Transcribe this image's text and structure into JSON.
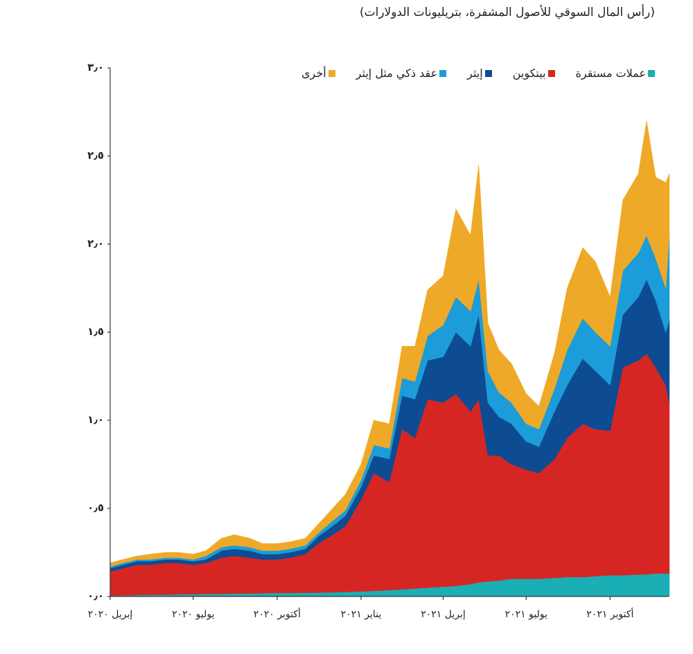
{
  "chart_data": {
    "type": "area",
    "stacked": true,
    "title": "(رأس المال السوقي للأصول المشفرة، بتريليونات الدولارات)",
    "xlabel": "",
    "ylabel": "",
    "ylim": [
      0,
      3.0
    ],
    "grid": false,
    "legend_position": "top",
    "y_ticks": [
      0,
      0.5,
      1.0,
      1.5,
      2.0,
      2.5,
      3.0
    ],
    "y_tick_labels": [
      "٠٫٠",
      "٠٫٥",
      "١٫٠",
      "١٫٥",
      "٢٫٠",
      "٢٫٥",
      "٣٫٠"
    ],
    "x_ticks": [
      "2020-04-01",
      "2020-07-01",
      "2020-10-01",
      "2021-01-01",
      "2021-04-01",
      "2021-07-01",
      "2021-10-01"
    ],
    "x_tick_labels": [
      "إبريل ٢٠٢٠",
      "يوليو ٢٠٢٠",
      "أكتوبر ٢٠٢٠",
      "يناير ٢٠٢١",
      "إبريل ٢٠٢١",
      "يوليو ٢٠٢١",
      "أكتوبر ٢٠٢١"
    ],
    "x": [
      "2020-04-01",
      "2020-04-15",
      "2020-05-01",
      "2020-05-15",
      "2020-06-01",
      "2020-06-15",
      "2020-07-01",
      "2020-07-15",
      "2020-08-01",
      "2020-08-15",
      "2020-09-01",
      "2020-09-15",
      "2020-10-01",
      "2020-10-15",
      "2020-11-01",
      "2020-11-15",
      "2020-12-01",
      "2020-12-15",
      "2021-01-01",
      "2021-01-15",
      "2021-02-01",
      "2021-02-15",
      "2021-03-01",
      "2021-03-15",
      "2021-04-01",
      "2021-04-15",
      "2021-05-01",
      "2021-05-10",
      "2021-05-20",
      "2021-06-01",
      "2021-06-15",
      "2021-07-01",
      "2021-07-15",
      "2021-08-01",
      "2021-08-15",
      "2021-09-01",
      "2021-09-15",
      "2021-10-01",
      "2021-10-15",
      "2021-11-01",
      "2021-11-10",
      "2021-11-20",
      "2021-12-01",
      "2021-12-05"
    ],
    "series": [
      {
        "name": "عملات مستقرة",
        "color": "#1aafb4",
        "values": [
          0.005,
          0.006,
          0.008,
          0.01,
          0.01,
          0.012,
          0.013,
          0.014,
          0.015,
          0.016,
          0.017,
          0.018,
          0.02,
          0.02,
          0.021,
          0.022,
          0.024,
          0.026,
          0.028,
          0.032,
          0.036,
          0.04,
          0.045,
          0.05,
          0.055,
          0.06,
          0.07,
          0.08,
          0.085,
          0.09,
          0.1,
          0.1,
          0.1,
          0.105,
          0.11,
          0.11,
          0.115,
          0.12,
          0.12,
          0.125,
          0.125,
          0.13,
          0.13,
          0.13
        ]
      },
      {
        "name": "بيتكوين",
        "color": "#d62624",
        "values": [
          0.135,
          0.154,
          0.172,
          0.17,
          0.18,
          0.178,
          0.167,
          0.176,
          0.205,
          0.214,
          0.203,
          0.192,
          0.19,
          0.2,
          0.219,
          0.278,
          0.326,
          0.374,
          0.522,
          0.668,
          0.614,
          0.91,
          0.855,
          1.07,
          1.045,
          1.09,
          0.98,
          1.04,
          0.715,
          0.71,
          0.65,
          0.62,
          0.6,
          0.675,
          0.79,
          0.87,
          0.835,
          0.82,
          1.18,
          1.215,
          1.255,
          1.17,
          1.07,
          0.97
        ]
      },
      {
        "name": "إيثر",
        "color": "#0d4c92",
        "values": [
          0.02,
          0.02,
          0.02,
          0.02,
          0.02,
          0.02,
          0.02,
          0.02,
          0.04,
          0.04,
          0.04,
          0.03,
          0.03,
          0.03,
          0.03,
          0.04,
          0.05,
          0.06,
          0.07,
          0.1,
          0.13,
          0.19,
          0.22,
          0.22,
          0.26,
          0.35,
          0.37,
          0.48,
          0.3,
          0.22,
          0.23,
          0.16,
          0.15,
          0.27,
          0.3,
          0.37,
          0.33,
          0.26,
          0.3,
          0.36,
          0.42,
          0.38,
          0.3,
          0.47
        ]
      },
      {
        "name": "عقد ذكي مثل إيثر",
        "color": "#1c9cd8",
        "values": [
          0.01,
          0.01,
          0.01,
          0.01,
          0.01,
          0.01,
          0.01,
          0.02,
          0.02,
          0.02,
          0.02,
          0.02,
          0.02,
          0.02,
          0.02,
          0.02,
          0.03,
          0.03,
          0.04,
          0.06,
          0.06,
          0.1,
          0.1,
          0.14,
          0.18,
          0.2,
          0.2,
          0.2,
          0.18,
          0.14,
          0.12,
          0.1,
          0.1,
          0.13,
          0.2,
          0.23,
          0.22,
          0.22,
          0.25,
          0.25,
          0.25,
          0.24,
          0.25,
          0.48
        ]
      },
      {
        "name": "أخرى",
        "color": "#efa928",
        "values": [
          0.02,
          0.02,
          0.02,
          0.03,
          0.03,
          0.03,
          0.03,
          0.03,
          0.05,
          0.06,
          0.05,
          0.04,
          0.04,
          0.04,
          0.04,
          0.05,
          0.07,
          0.09,
          0.09,
          0.14,
          0.14,
          0.18,
          0.2,
          0.26,
          0.28,
          0.5,
          0.43,
          0.65,
          0.27,
          0.24,
          0.22,
          0.17,
          0.13,
          0.2,
          0.35,
          0.4,
          0.4,
          0.28,
          0.4,
          0.45,
          0.65,
          0.46,
          0.6,
          0.35
        ]
      }
    ]
  }
}
